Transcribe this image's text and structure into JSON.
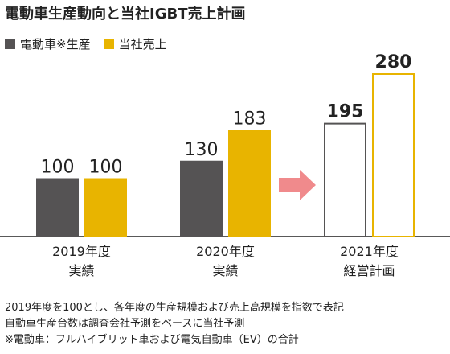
{
  "chart_data": {
    "type": "bar",
    "title": "電動車生産動向と当社IGBT売上計画",
    "categories": [
      [
        "2019年度",
        "実績"
      ],
      [
        "2020年度",
        "実績"
      ],
      [
        "2021年度",
        "経営計画"
      ]
    ],
    "series": [
      {
        "name": "電動車※生産",
        "values": [
          100,
          130,
          195
        ],
        "color": "#555354"
      },
      {
        "name": "当社売上",
        "values": [
          100,
          183,
          280
        ],
        "color": "#e8b400"
      }
    ],
    "plan_category_index": 2,
    "plan_style": "outlined",
    "arrow": {
      "color": "#f08a8c",
      "between": [
        1,
        2
      ]
    },
    "ylim": [
      0,
      300
    ],
    "grid": false,
    "legend_position": "top-left",
    "xlabel": "",
    "ylabel": ""
  },
  "notes": [
    "2019年度を100とし、各年度の生産規模および売上高規模を指数で表記",
    "自動車生産台数は調査会社予測をベースに当社予測",
    "※電動車：フルハイブリット車および電気自動車（EV）の合計"
  ]
}
